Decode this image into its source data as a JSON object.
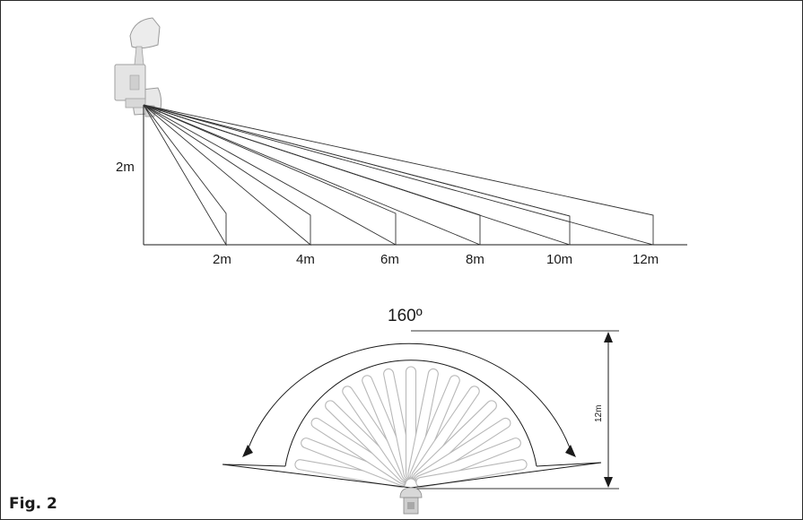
{
  "figure": {
    "caption": "Fig. 2"
  },
  "side_view": {
    "height_label": "2m",
    "distance_labels": [
      "2m",
      "4m",
      "6m",
      "8m",
      "10m",
      "12m"
    ]
  },
  "top_view": {
    "angle_label": "160º",
    "range_label": "12m"
  }
}
